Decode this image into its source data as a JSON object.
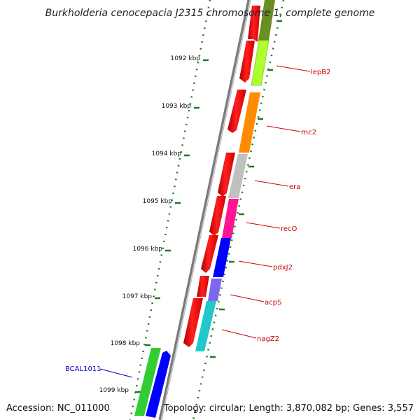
{
  "title": "Burkholderia cenocepacia J2315 chromosome 1, complete genome",
  "accession": "Accession: NC_011000",
  "topology": "Topology: circular; Length: 3,870,082 bp; Genes: 3,557",
  "kbp_labels": [
    "1092 kbp",
    "1093 kbp",
    "1094 kbp",
    "1095 kbp",
    "1096 kbp",
    "1097 kbp",
    "1098 kbp",
    "1099 kbp"
  ],
  "genes": [
    {
      "name": "lepB2",
      "color": "#adff2f",
      "label_color": "#cc0000"
    },
    {
      "name": "rnc2",
      "color": "#ff8c00",
      "label_color": "#cc0000"
    },
    {
      "name": "era",
      "color": "#c0c0c0",
      "label_color": "#cc0000"
    },
    {
      "name": "recO",
      "color": "#ff1493",
      "label_color": "#cc0000"
    },
    {
      "name": "pdxJ2",
      "color": "#0000ff",
      "label_color": "#cc0000"
    },
    {
      "name": "acpS",
      "color": "#7b68ee",
      "label_color": "#cc0000"
    },
    {
      "name": "nagZ2",
      "color": "#20c8c8",
      "label_color": "#cc0000"
    },
    {
      "name": "BCAL1011",
      "color": "#32cd32",
      "label_color": "#0000cc"
    }
  ],
  "colors": {
    "cds_forward": "#ff0000",
    "backbone": "#808080",
    "ticks": "#1e7b1e",
    "blue_cds": "#0000ff"
  }
}
